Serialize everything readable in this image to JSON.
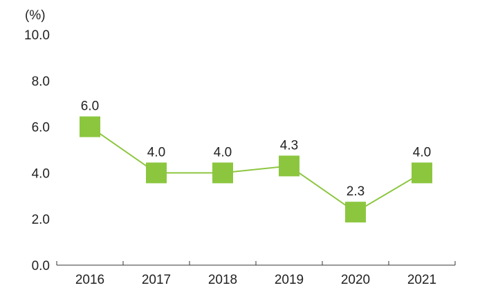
{
  "chart_data": {
    "type": "line",
    "unit_label": "(%)",
    "categories": [
      "2016",
      "2017",
      "2018",
      "2019",
      "2020",
      "2021"
    ],
    "values": [
      6.0,
      4.0,
      4.0,
      4.3,
      2.3,
      4.0
    ],
    "data_labels": [
      "6.0",
      "4.0",
      "4.0",
      "4.3",
      "2.3",
      "4.0"
    ],
    "y_ticks": [
      "0.0",
      "2.0",
      "4.0",
      "6.0",
      "8.0",
      "10.0"
    ],
    "ylim": [
      0,
      10
    ],
    "grid": false,
    "legend": "none",
    "colors": {
      "line": "#8cc63f",
      "marker": "#8cc63f",
      "axis": "#333333"
    }
  }
}
